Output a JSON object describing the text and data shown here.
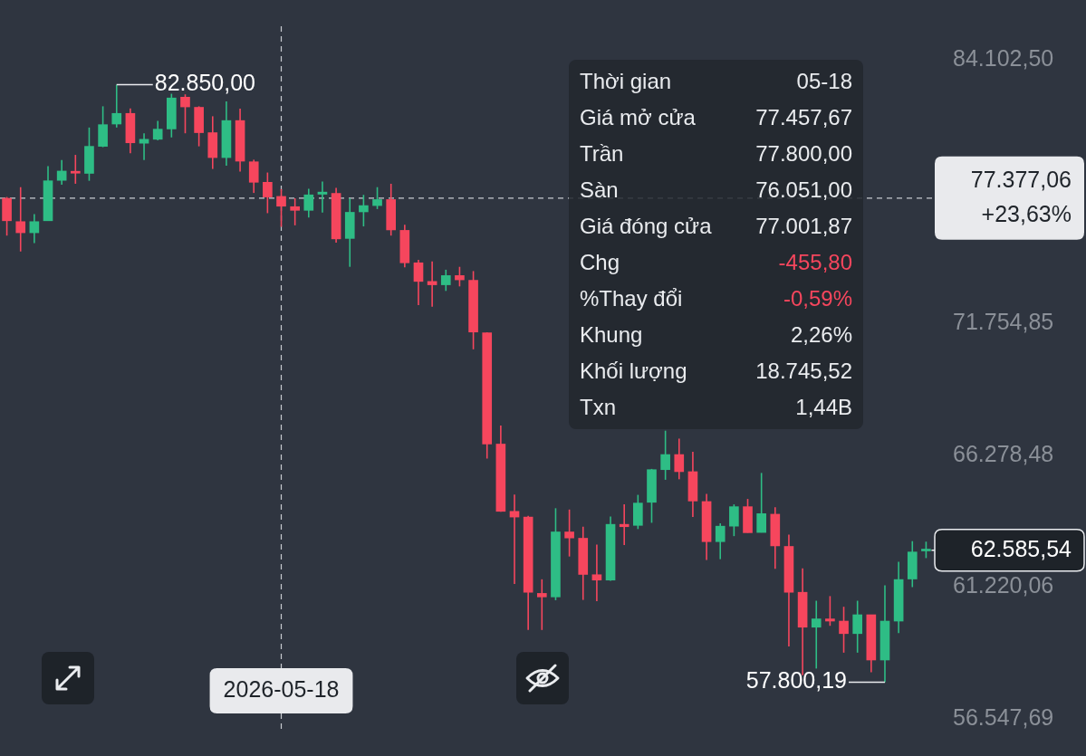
{
  "chart_data": {
    "type": "candlestick",
    "categories": [
      null,
      null,
      null,
      null,
      null,
      null,
      null,
      null,
      null,
      null,
      null,
      null,
      null,
      null,
      null,
      null,
      null,
      null,
      null,
      null,
      "2026-05-18",
      null,
      null,
      null,
      null,
      null,
      null,
      null,
      null,
      null,
      null,
      null,
      null,
      null,
      null,
      null,
      null,
      null,
      null,
      null,
      null,
      null,
      null,
      null,
      null,
      null,
      null,
      null,
      null,
      null,
      null,
      null,
      null,
      null,
      null,
      null,
      null,
      null,
      null,
      null,
      null,
      null,
      null,
      null,
      null,
      null,
      null,
      null
    ],
    "ohlc": [
      [
        77370,
        77430,
        75650,
        76330
      ],
      [
        76290,
        77890,
        74930,
        75780
      ],
      [
        75780,
        76640,
        75310,
        76290
      ],
      [
        76330,
        78880,
        76330,
        78190
      ],
      [
        78210,
        79170,
        78010,
        78650
      ],
      [
        78640,
        79420,
        78050,
        78550
      ],
      [
        78540,
        80740,
        78190,
        79830
      ],
      [
        79830,
        81780,
        79790,
        80880
      ],
      [
        80910,
        82850,
        80740,
        81430
      ],
      [
        81430,
        81680,
        79500,
        80000
      ],
      [
        79980,
        80460,
        79170,
        80170
      ],
      [
        80170,
        81060,
        80120,
        80660
      ],
      [
        80670,
        82400,
        80260,
        82190
      ],
      [
        82230,
        82370,
        80460,
        81750
      ],
      [
        81730,
        81780,
        79830,
        80490
      ],
      [
        80490,
        81290,
        78750,
        79290
      ],
      [
        79290,
        82020,
        78910,
        81080
      ],
      [
        81080,
        81660,
        78630,
        79120
      ],
      [
        79090,
        79190,
        77620,
        78120
      ],
      [
        78120,
        78580,
        76680,
        77430
      ],
      [
        77457.67,
        77800,
        76051,
        77001.87
      ],
      [
        76980,
        77370,
        76120,
        76810
      ],
      [
        76810,
        77820,
        76480,
        77530
      ],
      [
        77560,
        78160,
        76710,
        77660
      ],
      [
        77600,
        77860,
        75330,
        75500
      ],
      [
        75520,
        77370,
        74240,
        76720
      ],
      [
        76740,
        77530,
        76070,
        77030
      ],
      [
        77030,
        77890,
        76870,
        77310
      ],
      [
        77310,
        78050,
        75650,
        75910
      ],
      [
        75890,
        76150,
        74220,
        74420
      ],
      [
        74420,
        74550,
        72550,
        73590
      ],
      [
        73590,
        74480,
        72480,
        73440
      ],
      [
        73440,
        74110,
        73170,
        73850
      ],
      [
        73850,
        74240,
        73370,
        73660
      ],
      [
        73640,
        74050,
        70640,
        71380
      ],
      [
        71350,
        71370,
        66140,
        66720
      ],
      [
        66720,
        67470,
        64050,
        64070
      ],
      [
        64070,
        64720,
        61330,
        63850
      ],
      [
        63850,
        63900,
        59650,
        61020
      ],
      [
        60980,
        61500,
        59650,
        60850
      ],
      [
        60850,
        64190,
        60730,
        63280
      ],
      [
        63280,
        64140,
        62350,
        63050
      ],
      [
        63040,
        63480,
        60740,
        61680
      ],
      [
        61670,
        62800,
        60690,
        61470
      ],
      [
        61470,
        63870,
        61440,
        63570
      ],
      [
        63570,
        64340,
        62780,
        63480
      ],
      [
        63530,
        64710,
        63390,
        64390
      ],
      [
        64420,
        65730,
        63630,
        65700
      ],
      [
        65700,
        67260,
        65300,
        66300
      ],
      [
        66300,
        66940,
        65320,
        65620
      ],
      [
        65620,
        66410,
        63850,
        64470
      ],
      [
        64450,
        64750,
        62220,
        62910
      ],
      [
        62910,
        63610,
        62250,
        63500
      ],
      [
        63500,
        64340,
        63120,
        64250
      ],
      [
        64250,
        64550,
        63250,
        63250
      ],
      [
        63260,
        65570,
        63260,
        63980
      ],
      [
        63960,
        64230,
        61890,
        62750
      ],
      [
        62730,
        63180,
        59060,
        61020
      ],
      [
        61020,
        61910,
        58050,
        59750
      ],
      [
        59750,
        60710,
        58280,
        60050
      ],
      [
        60050,
        60880,
        59800,
        59970
      ],
      [
        59970,
        60490,
        58840,
        59520
      ],
      [
        59520,
        60710,
        58840,
        60200
      ],
      [
        60200,
        60200,
        58150,
        58580
      ],
      [
        58580,
        61280,
        57800.19,
        59970
      ],
      [
        59970,
        62150,
        59540,
        61490
      ],
      [
        61510,
        62930,
        61210,
        62520
      ],
      [
        62560,
        62910,
        62290,
        62585.54
      ]
    ],
    "colors": [
      "#f6465d",
      "#f6465d",
      "#2ebd85",
      "#2ebd85",
      "#2ebd85",
      "#f6465d",
      "#2ebd85",
      "#2ebd85",
      "#2ebd85",
      "#f6465d",
      "#2ebd85",
      "#2ebd85",
      "#2ebd85",
      "#f6465d",
      "#f6465d",
      "#f6465d",
      "#2ebd85",
      "#f6465d",
      "#f6465d",
      "#f6465d",
      "#f6465d",
      "#f6465d",
      "#2ebd85",
      "#2ebd85",
      "#f6465d",
      "#2ebd85",
      "#2ebd85",
      "#2ebd85",
      "#f6465d",
      "#f6465d",
      "#f6465d",
      "#f6465d",
      "#2ebd85",
      "#f6465d",
      "#f6465d",
      "#f6465d",
      "#f6465d",
      "#f6465d",
      "#f6465d",
      "#f6465d",
      "#2ebd85",
      "#f6465d",
      "#f6465d",
      "#f6465d",
      "#2ebd85",
      "#f6465d",
      "#2ebd85",
      "#2ebd85",
      "#2ebd85",
      "#f6465d",
      "#f6465d",
      "#f6465d",
      "#2ebd85",
      "#2ebd85",
      "#f6465d",
      "#2ebd85",
      "#f6465d",
      "#f6465d",
      "#f6465d",
      "#2ebd85",
      "#f6465d",
      "#f6465d",
      "#2ebd85",
      "#f6465d",
      "#2ebd85",
      "#2ebd85",
      "#2ebd85",
      "#2ebd85"
    ],
    "ylim": [
      56170,
      85820
    ],
    "log": true,
    "yticks": [
      {
        "value": 84102.5,
        "label": "84.102,50"
      },
      {
        "value": 71754.85,
        "label": "71.754,85"
      },
      {
        "value": 66278.48,
        "label": "66.278,48"
      },
      {
        "value": 61220.06,
        "label": "61.220,06"
      },
      {
        "value": 56547.69,
        "label": "56.547,69"
      }
    ],
    "grid": false,
    "ref_lines": [
      {
        "axis": "y",
        "value": 77377.06,
        "label": "77.377,06\n+23,63%",
        "line_style": "dashed"
      }
    ],
    "annotations": [
      "Thời gian",
      "05-18",
      "Giá mở cửa",
      "77.457,67",
      "Trần",
      "77.800,00",
      "Sàn",
      "76.051,00",
      "Giá đóng cửa",
      "77.001,87",
      "Chg",
      "-455,80",
      "%Thay đổi",
      "-0,59%",
      "Khung",
      "2,26%",
      "Khối lượng",
      "18.745,52",
      "Txn",
      "1,44B",
      "82.850,00",
      "57.800,19",
      "62.585,54"
    ]
  }
}
